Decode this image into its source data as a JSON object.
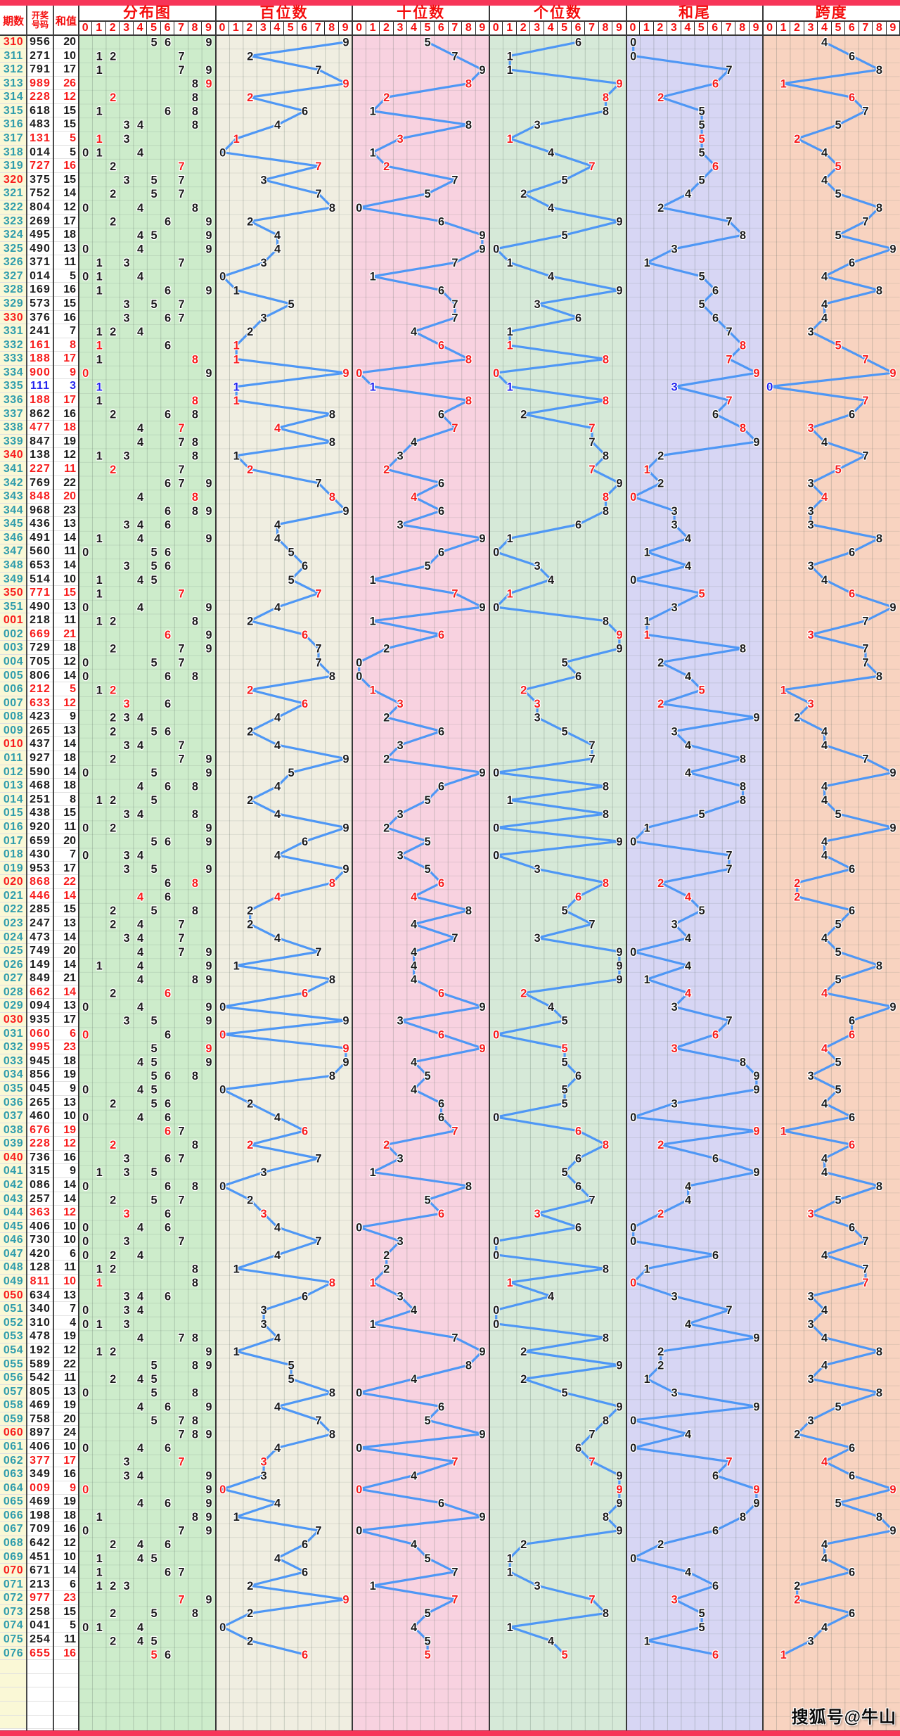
{
  "header": {
    "period": "期数",
    "number_top": "开奖",
    "number_bottom": "号码",
    "sum": "和值",
    "digit_labels": [
      "0",
      "1",
      "2",
      "3",
      "4",
      "5",
      "6",
      "7",
      "8",
      "9"
    ],
    "panels": [
      {
        "id": "distribution",
        "title": "分布图"
      },
      {
        "id": "hundreds",
        "title": "百位数"
      },
      {
        "id": "tens",
        "title": "十位数"
      },
      {
        "id": "units",
        "title": "个位数"
      },
      {
        "id": "sumtail",
        "title": "和尾"
      },
      {
        "id": "span",
        "title": "跨度"
      }
    ]
  },
  "footer": {
    "watermark": "搜狐号@牛山"
  },
  "colors": {
    "strip": "#f73558",
    "header_text": "#f40d0d",
    "period_normal": "#2f9cac",
    "period_highlight": "#f81c1c",
    "value_normal": "#1c1c1c",
    "value_pair": "#f81c1c",
    "value_triple": "#2424ee",
    "line": "#4e97f5",
    "period_col_bg": "#faf8d6",
    "panel_bg": {
      "distribution": "#cdeccb",
      "hundreds": "#f0eee1",
      "tens": "#f8d2e0",
      "units": "#d6e9d8",
      "sumtail": "#d7d6f4",
      "span": "#f8d3c0"
    }
  },
  "chart_data": {
    "type": "line",
    "title": "3D彩票走势图 (期数 310-351, 001-076)",
    "x_axis_per_panel": "digit columns 0-9",
    "panels_semantics": {
      "distribution": "each digit of the winning number plotted at its column; digit appearing twice = red, three times = blue",
      "hundreds": "first digit of winning number",
      "tens": "second digit of winning number",
      "units": "third digit of winning number",
      "sumtail": "last digit of the sum (和值 mod 10)",
      "span": "max digit minus min digit"
    },
    "row_format": [
      "period",
      "winning_number",
      "sum"
    ],
    "rows": [
      [
        "310",
        "956",
        "20"
      ],
      [
        "311",
        "271",
        "10"
      ],
      [
        "312",
        "791",
        "17"
      ],
      [
        "313",
        "989",
        "26"
      ],
      [
        "314",
        "228",
        "12"
      ],
      [
        "315",
        "618",
        "15"
      ],
      [
        "316",
        "483",
        "15"
      ],
      [
        "317",
        "131",
        "5"
      ],
      [
        "318",
        "014",
        "5"
      ],
      [
        "319",
        "727",
        "16"
      ],
      [
        "320",
        "375",
        "15"
      ],
      [
        "321",
        "752",
        "14"
      ],
      [
        "322",
        "804",
        "12"
      ],
      [
        "323",
        "269",
        "17"
      ],
      [
        "324",
        "495",
        "18"
      ],
      [
        "325",
        "490",
        "13"
      ],
      [
        "326",
        "371",
        "11"
      ],
      [
        "327",
        "014",
        "5"
      ],
      [
        "328",
        "169",
        "16"
      ],
      [
        "329",
        "573",
        "15"
      ],
      [
        "330",
        "376",
        "16"
      ],
      [
        "331",
        "241",
        "7"
      ],
      [
        "332",
        "161",
        "8"
      ],
      [
        "333",
        "188",
        "17"
      ],
      [
        "334",
        "900",
        "9"
      ],
      [
        "335",
        "111",
        "3"
      ],
      [
        "336",
        "188",
        "17"
      ],
      [
        "337",
        "862",
        "16"
      ],
      [
        "338",
        "477",
        "18"
      ],
      [
        "339",
        "847",
        "19"
      ],
      [
        "340",
        "138",
        "12"
      ],
      [
        "341",
        "227",
        "11"
      ],
      [
        "342",
        "769",
        "22"
      ],
      [
        "343",
        "848",
        "20"
      ],
      [
        "344",
        "968",
        "23"
      ],
      [
        "345",
        "436",
        "13"
      ],
      [
        "346",
        "491",
        "14"
      ],
      [
        "347",
        "560",
        "11"
      ],
      [
        "348",
        "653",
        "14"
      ],
      [
        "349",
        "514",
        "10"
      ],
      [
        "350",
        "771",
        "15"
      ],
      [
        "351",
        "490",
        "13"
      ],
      [
        "001",
        "218",
        "11"
      ],
      [
        "002",
        "669",
        "21"
      ],
      [
        "003",
        "729",
        "18"
      ],
      [
        "004",
        "705",
        "12"
      ],
      [
        "005",
        "806",
        "14"
      ],
      [
        "006",
        "212",
        "5"
      ],
      [
        "007",
        "633",
        "12"
      ],
      [
        "008",
        "423",
        "9"
      ],
      [
        "009",
        "265",
        "13"
      ],
      [
        "010",
        "437",
        "14"
      ],
      [
        "011",
        "927",
        "18"
      ],
      [
        "012",
        "590",
        "14"
      ],
      [
        "013",
        "468",
        "18"
      ],
      [
        "014",
        "251",
        "8"
      ],
      [
        "015",
        "438",
        "15"
      ],
      [
        "016",
        "920",
        "11"
      ],
      [
        "017",
        "659",
        "20"
      ],
      [
        "018",
        "430",
        "7"
      ],
      [
        "019",
        "953",
        "17"
      ],
      [
        "020",
        "868",
        "22"
      ],
      [
        "021",
        "446",
        "14"
      ],
      [
        "022",
        "285",
        "15"
      ],
      [
        "023",
        "247",
        "13"
      ],
      [
        "024",
        "473",
        "14"
      ],
      [
        "025",
        "749",
        "20"
      ],
      [
        "026",
        "149",
        "14"
      ],
      [
        "027",
        "849",
        "21"
      ],
      [
        "028",
        "662",
        "14"
      ],
      [
        "029",
        "094",
        "13"
      ],
      [
        "030",
        "935",
        "17"
      ],
      [
        "031",
        "060",
        "6"
      ],
      [
        "032",
        "995",
        "23"
      ],
      [
        "033",
        "945",
        "18"
      ],
      [
        "034",
        "856",
        "19"
      ],
      [
        "035",
        "045",
        "9"
      ],
      [
        "036",
        "265",
        "13"
      ],
      [
        "037",
        "460",
        "10"
      ],
      [
        "038",
        "676",
        "19"
      ],
      [
        "039",
        "228",
        "12"
      ],
      [
        "040",
        "736",
        "16"
      ],
      [
        "041",
        "315",
        "9"
      ],
      [
        "042",
        "086",
        "14"
      ],
      [
        "043",
        "257",
        "14"
      ],
      [
        "044",
        "363",
        "12"
      ],
      [
        "045",
        "406",
        "10"
      ],
      [
        "046",
        "730",
        "10"
      ],
      [
        "047",
        "420",
        "6"
      ],
      [
        "048",
        "128",
        "11"
      ],
      [
        "049",
        "811",
        "10"
      ],
      [
        "050",
        "634",
        "13"
      ],
      [
        "051",
        "340",
        "7"
      ],
      [
        "052",
        "310",
        "4"
      ],
      [
        "053",
        "478",
        "19"
      ],
      [
        "054",
        "192",
        "12"
      ],
      [
        "055",
        "589",
        "22"
      ],
      [
        "056",
        "542",
        "11"
      ],
      [
        "057",
        "805",
        "13"
      ],
      [
        "058",
        "469",
        "19"
      ],
      [
        "059",
        "758",
        "20"
      ],
      [
        "060",
        "897",
        "24"
      ],
      [
        "061",
        "406",
        "10"
      ],
      [
        "062",
        "377",
        "17"
      ],
      [
        "063",
        "349",
        "16"
      ],
      [
        "064",
        "009",
        "9"
      ],
      [
        "065",
        "469",
        "19"
      ],
      [
        "066",
        "198",
        "18"
      ],
      [
        "067",
        "709",
        "16"
      ],
      [
        "068",
        "642",
        "12"
      ],
      [
        "069",
        "451",
        "10"
      ],
      [
        "070",
        "671",
        "14"
      ],
      [
        "071",
        "213",
        "6"
      ],
      [
        "072",
        "977",
        "23"
      ],
      [
        "073",
        "258",
        "15"
      ],
      [
        "074",
        "041",
        "5"
      ],
      [
        "075",
        "254",
        "11"
      ],
      [
        "076",
        "655",
        "16"
      ]
    ],
    "highlight_rules": {
      "period_red": "periods ending in 0, plus 001",
      "pair_red": "rows whose number has exactly two equal digits are shown in red",
      "triple_blue": "rows whose number has three equal digits are shown in blue"
    }
  }
}
